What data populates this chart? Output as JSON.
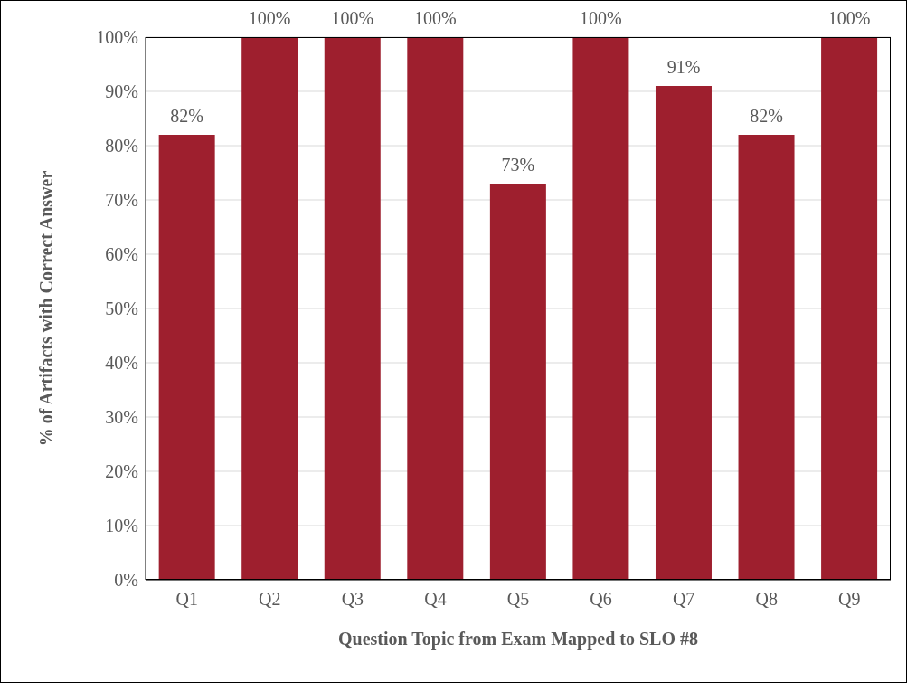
{
  "chart_data": {
    "type": "bar",
    "xlabel": "Question Topic from Exam Mapped to SLO #8",
    "ylabel": "% of Artifacts with Correct Answer",
    "categories": [
      "Q1",
      "Q2",
      "Q3",
      "Q4",
      "Q5",
      "Q6",
      "Q7",
      "Q8",
      "Q9"
    ],
    "values": [
      82,
      100,
      100,
      100,
      73,
      100,
      91,
      82,
      100
    ],
    "value_labels": [
      "82%",
      "100%",
      "100%",
      "100%",
      "73%",
      "100%",
      "91%",
      "82%",
      "100%"
    ],
    "color": "#9e1f2e",
    "ylim": [
      0,
      100
    ],
    "yticks": [
      {
        "value": 0,
        "label": "0%"
      },
      {
        "value": 10,
        "label": "10%"
      },
      {
        "value": 20,
        "label": "20%"
      },
      {
        "value": 30,
        "label": "30%"
      },
      {
        "value": 40,
        "label": "40%"
      },
      {
        "value": 50,
        "label": "50%"
      },
      {
        "value": 60,
        "label": "60%"
      },
      {
        "value": 70,
        "label": "70%"
      },
      {
        "value": 80,
        "label": "80%"
      },
      {
        "value": 90,
        "label": "90%"
      },
      {
        "value": 100,
        "label": "100%"
      }
    ],
    "grid": "y",
    "legend": false
  }
}
